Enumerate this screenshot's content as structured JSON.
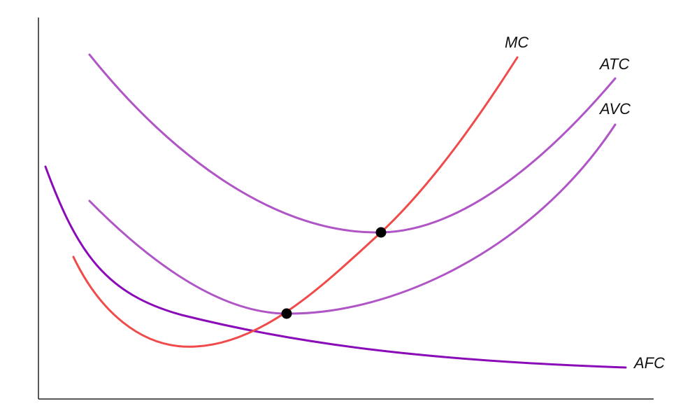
{
  "curves": [
    {
      "label": "MC"
    },
    {
      "label": "ATC"
    },
    {
      "label": "AVC"
    },
    {
      "label": "AFC"
    }
  ]
}
